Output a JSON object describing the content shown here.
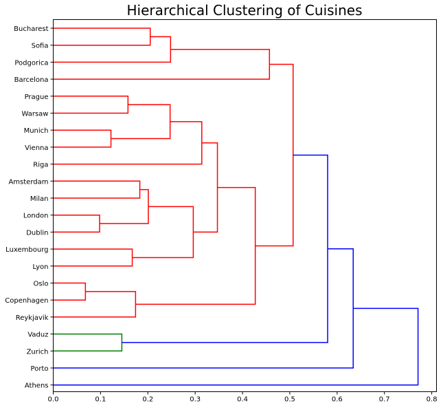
{
  "chart_data": {
    "type": "dendrogram",
    "title": "Hierarchical Clustering of Cuisines",
    "orientation": "horizontal",
    "xlim": [
      0.0,
      0.81
    ],
    "xticks": [
      0.0,
      0.1,
      0.2,
      0.3,
      0.4,
      0.5,
      0.6,
      0.7,
      0.8
    ],
    "xtick_labels": [
      "0.0",
      "0.1",
      "0.2",
      "0.3",
      "0.4",
      "0.5",
      "0.6",
      "0.7",
      "0.8"
    ],
    "grid": false,
    "leaves": [
      "Bucharest",
      "Sofia",
      "Podgorica",
      "Barcelona",
      "Prague",
      "Warsaw",
      "Munich",
      "Vienna",
      "Riga",
      "Amsterdam",
      "Milan",
      "London",
      "Dublin",
      "Luxembourg",
      "Lyon",
      "Oslo",
      "Copenhagen",
      "Reykjavik",
      "Vaduz",
      "Zurich",
      "Porto",
      "Athens"
    ],
    "colors": {
      "red": "#ff0000",
      "green": "#008000",
      "blue": "#0000ff"
    },
    "links": [
      {
        "a": "Bucharest",
        "b": "Sofia",
        "height": 0.205,
        "id": "C1",
        "color": "red"
      },
      {
        "a": "C1",
        "b": "Podgorica",
        "height": 0.248,
        "id": "C2",
        "color": "red"
      },
      {
        "a": "C2",
        "b": "Barcelona",
        "height": 0.457,
        "id": "C3",
        "color": "red"
      },
      {
        "a": "Prague",
        "b": "Warsaw",
        "height": 0.158,
        "id": "C4",
        "color": "red"
      },
      {
        "a": "Munich",
        "b": "Vienna",
        "height": 0.122,
        "id": "C5",
        "color": "red"
      },
      {
        "a": "C4",
        "b": "C5",
        "height": 0.247,
        "id": "C6",
        "color": "red"
      },
      {
        "a": "C6",
        "b": "Riga",
        "height": 0.314,
        "id": "C7",
        "color": "red"
      },
      {
        "a": "London",
        "b": "Dublin",
        "height": 0.098,
        "id": "C8",
        "color": "red"
      },
      {
        "a": "Amsterdam",
        "b": "Milan",
        "height": 0.183,
        "id": "C9",
        "color": "red"
      },
      {
        "a": "C9",
        "b": "C8",
        "height": 0.201,
        "id": "C10",
        "color": "red"
      },
      {
        "a": "Luxembourg",
        "b": "Lyon",
        "height": 0.167,
        "id": "C11",
        "color": "red"
      },
      {
        "a": "C10",
        "b": "C11",
        "height": 0.296,
        "id": "C12",
        "color": "red"
      },
      {
        "a": "C7",
        "b": "C12",
        "height": 0.347,
        "id": "C13",
        "color": "red"
      },
      {
        "a": "Oslo",
        "b": "Copenhagen",
        "height": 0.068,
        "id": "C14",
        "color": "red"
      },
      {
        "a": "C14",
        "b": "Reykjavik",
        "height": 0.174,
        "id": "C15",
        "color": "red"
      },
      {
        "a": "C13",
        "b": "C15",
        "height": 0.427,
        "id": "C16",
        "color": "red"
      },
      {
        "a": "C3",
        "b": "C16",
        "height": 0.507,
        "id": "C17",
        "color": "red"
      },
      {
        "a": "Vaduz",
        "b": "Zurich",
        "height": 0.145,
        "id": "C18",
        "color": "green"
      },
      {
        "a": "C17",
        "b": "C18",
        "height": 0.58,
        "id": "C19",
        "color": "blue"
      },
      {
        "a": "C19",
        "b": "Porto",
        "height": 0.634,
        "id": "C20",
        "color": "blue"
      },
      {
        "a": "C20",
        "b": "Athens",
        "height": 0.771,
        "id": "C21",
        "color": "blue"
      }
    ]
  }
}
